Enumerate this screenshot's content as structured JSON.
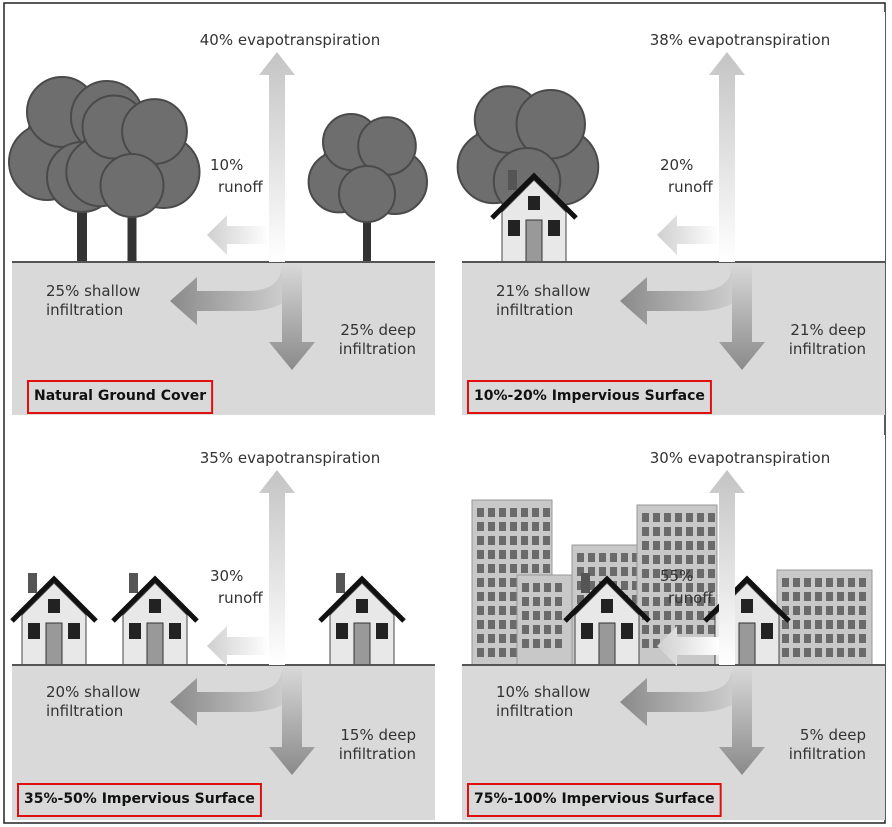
{
  "panels": [
    {
      "evapotranspiration": "40% evapotranspiration",
      "runoff": [
        "10%",
        "runoff"
      ],
      "shallow": [
        "25% shallow",
        "infiltration"
      ],
      "deep": [
        "25% deep",
        "infiltration"
      ],
      "label": "Natural Ground Cover"
    },
    {
      "evapotranspiration": "38% evapotranspiration",
      "runoff": [
        "20%",
        "runoff"
      ],
      "shallow": [
        "21% shallow",
        "infiltration"
      ],
      "deep": [
        "21% deep",
        "infiltration"
      ],
      "label": "10%-20% Impervious Surface"
    },
    {
      "evapotranspiration": "35% evapotranspiration",
      "runoff": [
        "30%",
        "runoff"
      ],
      "shallow": [
        "20% shallow",
        "infiltration"
      ],
      "deep": [
        "15% deep",
        "infiltration"
      ],
      "label": "35%-50% Impervious Surface"
    },
    {
      "evapotranspiration": "30% evapotranspiration",
      "runoff": [
        "55%",
        "runoff"
      ],
      "shallow": [
        "10% shallow",
        "infiltration"
      ],
      "deep": [
        "5% deep",
        "infiltration"
      ],
      "label": "75%-100% Impervious Surface"
    }
  ]
}
